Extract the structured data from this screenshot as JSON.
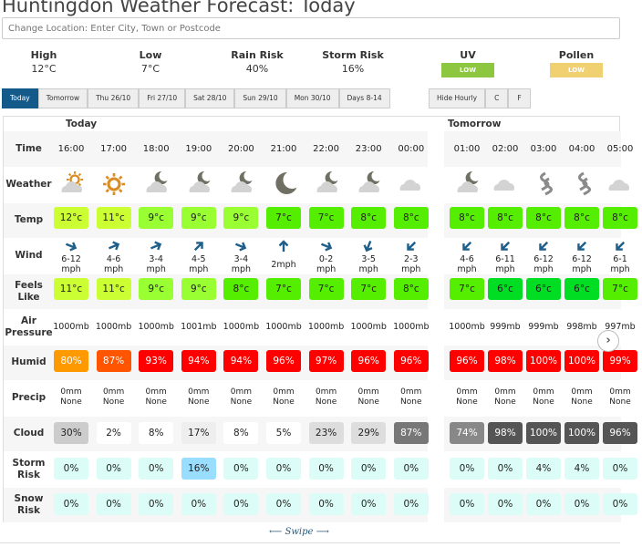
{
  "page_title": "Huntingdon Weather Forecast: Today",
  "search": {
    "placeholder": "Change Location: Enter City, Town or Postcode"
  },
  "summary": [
    {
      "label": "High",
      "value": "12°C"
    },
    {
      "label": "Low",
      "value": "7°C"
    },
    {
      "label": "Rain Risk",
      "value": "40%"
    },
    {
      "label": "Storm Risk",
      "value": "16%"
    },
    {
      "label": "UV",
      "badge": "LOW",
      "color": "#8dc63f"
    },
    {
      "label": "Pollen",
      "badge": "LOW",
      "color": "#f0d070"
    }
  ],
  "tabs": [
    "Today",
    "Tomorrow",
    "Thu 26/10",
    "Fri 27/10",
    "Sat 28/10",
    "Sun 29/10",
    "Mon 30/10",
    "Days 8-14"
  ],
  "active_tab": "Today",
  "options": [
    "Hide Hourly",
    "C",
    "F"
  ],
  "row_labels": [
    "Time",
    "Weather",
    "Temp",
    "Wind",
    "Feels Like",
    "Air Pressure",
    "Humid",
    "Precip",
    "Cloud",
    "Storm Risk",
    "Snow Risk"
  ],
  "sections": [
    {
      "name": "Today",
      "hours": [
        {
          "time": "16:00",
          "icon": "sun-cloud",
          "temp": "12°c",
          "tc": "#ccff33",
          "dir": "ESE",
          "wind": "6-12 mph",
          "feels": "11°c",
          "fc": "#ccff33",
          "pressure": "1000mb",
          "humid": "80%",
          "hc": "#ff9900",
          "precip": "0mm",
          "ptype": "None",
          "cloud": "30%",
          "cc": "#cccccc",
          "storm": "0%",
          "sc": "#dcfdf7",
          "snow": "0%"
        },
        {
          "time": "17:00",
          "icon": "sun",
          "temp": "11°c",
          "tc": "#ccff33",
          "dir": "ENE",
          "wind": "4-6 mph",
          "feels": "11°c",
          "fc": "#ccff33",
          "pressure": "1000mb",
          "humid": "87%",
          "hc": "#ff5500",
          "precip": "0mm",
          "ptype": "None",
          "cloud": "2%",
          "cc": "#ffffff",
          "storm": "0%",
          "sc": "#dcfdf7",
          "snow": "0%"
        },
        {
          "time": "18:00",
          "icon": "moon-cloud",
          "temp": "9°c",
          "tc": "#99ff33",
          "dir": "ENE",
          "wind": "3-4 mph",
          "feels": "9°c",
          "fc": "#99ff33",
          "pressure": "1000mb",
          "humid": "93%",
          "hc": "#ff0000",
          "precip": "0mm",
          "ptype": "None",
          "cloud": "8%",
          "cc": "#ffffff",
          "storm": "0%",
          "sc": "#dcfdf7",
          "snow": "0%"
        },
        {
          "time": "19:00",
          "icon": "moon-cloud",
          "temp": "9°c",
          "tc": "#99ff33",
          "dir": "NE",
          "wind": "4-5 mph",
          "feels": "9°c",
          "fc": "#99ff33",
          "pressure": "1001mb",
          "humid": "94%",
          "hc": "#ff0000",
          "precip": "0mm",
          "ptype": "None",
          "cloud": "17%",
          "cc": "#eeeeee",
          "storm": "16%",
          "sc": "#99ddff",
          "snow": "0%"
        },
        {
          "time": "20:00",
          "icon": "moon-cloud",
          "temp": "9°c",
          "tc": "#99ff33",
          "dir": "ESE",
          "wind": "3-4 mph",
          "feels": "8°c",
          "fc": "#55ee00",
          "pressure": "1000mb",
          "humid": "94%",
          "hc": "#ff0000",
          "precip": "0mm",
          "ptype": "None",
          "cloud": "8%",
          "cc": "#ffffff",
          "storm": "0%",
          "sc": "#dcfdf7",
          "snow": "0%"
        },
        {
          "time": "21:00",
          "icon": "moon",
          "temp": "7°c",
          "tc": "#55ee00",
          "dir": "N",
          "wind": "2mph",
          "feels": "7°c",
          "fc": "#55ee00",
          "pressure": "1000mb",
          "humid": "96%",
          "hc": "#ff0000",
          "precip": "0mm",
          "ptype": "None",
          "cloud": "5%",
          "cc": "#ffffff",
          "storm": "0%",
          "sc": "#dcfdf7",
          "snow": "0%"
        },
        {
          "time": "22:00",
          "icon": "moon-cloud",
          "temp": "7°c",
          "tc": "#55ee00",
          "dir": "ESE",
          "wind": "0-2 mph",
          "feels": "7°c",
          "fc": "#55ee00",
          "pressure": "1000mb",
          "humid": "97%",
          "hc": "#ff0000",
          "precip": "0mm",
          "ptype": "None",
          "cloud": "23%",
          "cc": "#dddddd",
          "storm": "0%",
          "sc": "#dcfdf7",
          "snow": "0%"
        },
        {
          "time": "23:00",
          "icon": "moon-cloud",
          "temp": "8°c",
          "tc": "#55ee00",
          "dir": "SSW",
          "wind": "3-5 mph",
          "feels": "7°c",
          "fc": "#55ee00",
          "pressure": "1000mb",
          "humid": "96%",
          "hc": "#ff0000",
          "precip": "0mm",
          "ptype": "None",
          "cloud": "29%",
          "cc": "#dddddd",
          "storm": "0%",
          "sc": "#dcfdf7",
          "snow": "0%"
        },
        {
          "time": "00:00",
          "icon": "cloud",
          "temp": "8°c",
          "tc": "#55ee00",
          "dir": "SW",
          "wind": "2-3 mph",
          "feels": "8°c",
          "fc": "#55ee00",
          "pressure": "1000mb",
          "humid": "96%",
          "hc": "#ff0000",
          "precip": "0mm",
          "ptype": "None",
          "cloud": "87%",
          "cc": "#777777",
          "storm": "0%",
          "sc": "#dcfdf7",
          "snow": "0%"
        }
      ]
    },
    {
      "name": "Tomorrow",
      "hours": [
        {
          "time": "01:00",
          "icon": "moon-cloud",
          "temp": "8°c",
          "tc": "#55ee00",
          "dir": "SW",
          "wind": "4-6 mph",
          "feels": "7°c",
          "fc": "#55ee00",
          "pressure": "1000mb",
          "humid": "96%",
          "hc": "#ff0000",
          "precip": "0mm",
          "ptype": "None",
          "cloud": "74%",
          "cc": "#888888",
          "storm": "0%",
          "sc": "#dcfdf7",
          "snow": "0%"
        },
        {
          "time": "02:00",
          "icon": "cloud",
          "temp": "8°c",
          "tc": "#55ee00",
          "dir": "SW",
          "wind": "6-11 mph",
          "feels": "6°c",
          "fc": "#00dd22",
          "pressure": "999mb",
          "humid": "98%",
          "hc": "#ff0000",
          "precip": "0mm",
          "ptype": "None",
          "cloud": "98%",
          "cc": "#555555",
          "storm": "0%",
          "sc": "#dcfdf7",
          "snow": "0%"
        },
        {
          "time": "03:00",
          "icon": "mist",
          "temp": "8°c",
          "tc": "#55ee00",
          "dir": "SW",
          "wind": "6-12 mph",
          "feels": "6°c",
          "fc": "#00dd22",
          "pressure": "999mb",
          "humid": "100%",
          "hc": "#ff0000",
          "precip": "0mm",
          "ptype": "None",
          "cloud": "100%",
          "cc": "#555555",
          "storm": "4%",
          "sc": "#dcfdf7",
          "snow": "0%"
        },
        {
          "time": "04:00",
          "icon": "mist",
          "temp": "8°c",
          "tc": "#55ee00",
          "dir": "SW",
          "wind": "6-12 mph",
          "feels": "6°c",
          "fc": "#00dd22",
          "pressure": "998mb",
          "humid": "100%",
          "hc": "#ff0000",
          "precip": "0mm",
          "ptype": "None",
          "cloud": "100%",
          "cc": "#555555",
          "storm": "4%",
          "sc": "#dcfdf7",
          "snow": "0%"
        },
        {
          "time": "05:00",
          "icon": "cloud",
          "temp": "8°c",
          "tc": "#55ee00",
          "dir": "SW",
          "wind": "6-1 mph",
          "feels": "7°c",
          "fc": "#55ee00",
          "pressure": "997mb",
          "humid": "99%",
          "hc": "#ff0000",
          "precip": "0mm",
          "ptype": "None",
          "cloud": "96%",
          "cc": "#555555",
          "storm": "0%",
          "sc": "#dcfdf7",
          "snow": "0%"
        }
      ]
    }
  ],
  "swipe": "⟵ Swipe ⟶",
  "next_icon": "›"
}
